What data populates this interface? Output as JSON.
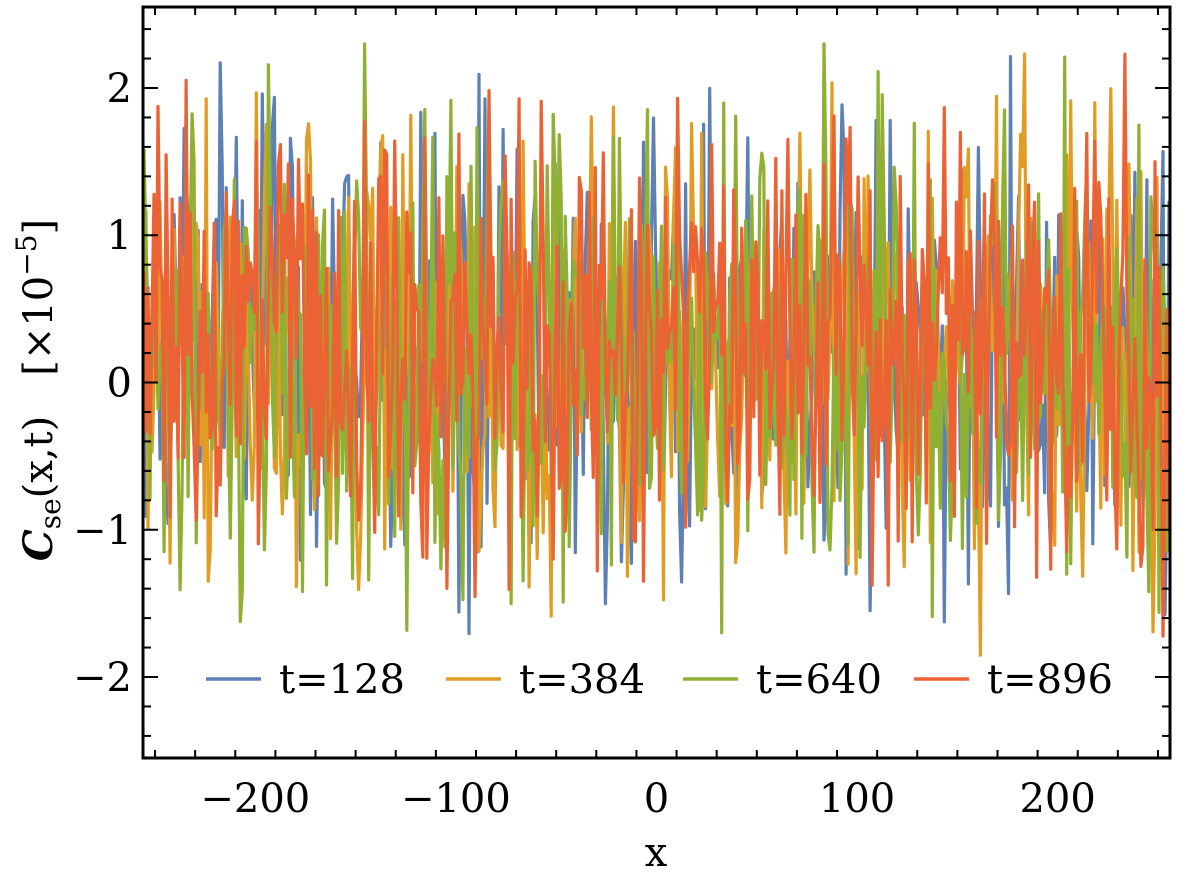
{
  "chart_data": {
    "type": "line",
    "xlabel": "x",
    "ylabel": "C_se(x,t)   [×10^−5]",
    "ylabel_parts": {
      "symbol": "C",
      "subscript": "se",
      "args": "(x,t)",
      "scale_prefix": "[×10",
      "scale_exponent": "−5",
      "scale_suffix": "]"
    },
    "xlim": [
      -256,
      256
    ],
    "ylim": [
      -2.55,
      2.55
    ],
    "x_ticks": [
      -200,
      -100,
      0,
      100,
      200
    ],
    "x_tick_labels": [
      "−200",
      "−100",
      "0",
      "100",
      "200"
    ],
    "y_ticks": [
      -2,
      -1,
      0,
      1,
      2
    ],
    "y_tick_labels": [
      "−2",
      "−1",
      "0",
      "1",
      "2"
    ],
    "grid": false,
    "legend_position": "bottom-center",
    "n_points_per_series": 512,
    "series": [
      {
        "name": "t=128",
        "color": "#5E81B5",
        "seed": 128
      },
      {
        "name": "t=384",
        "color": "#E19C24",
        "seed": 384
      },
      {
        "name": "t=640",
        "color": "#8FB032",
        "seed": 640
      },
      {
        "name": "t=896",
        "color": "#EB6235",
        "seed": 896
      }
    ]
  }
}
